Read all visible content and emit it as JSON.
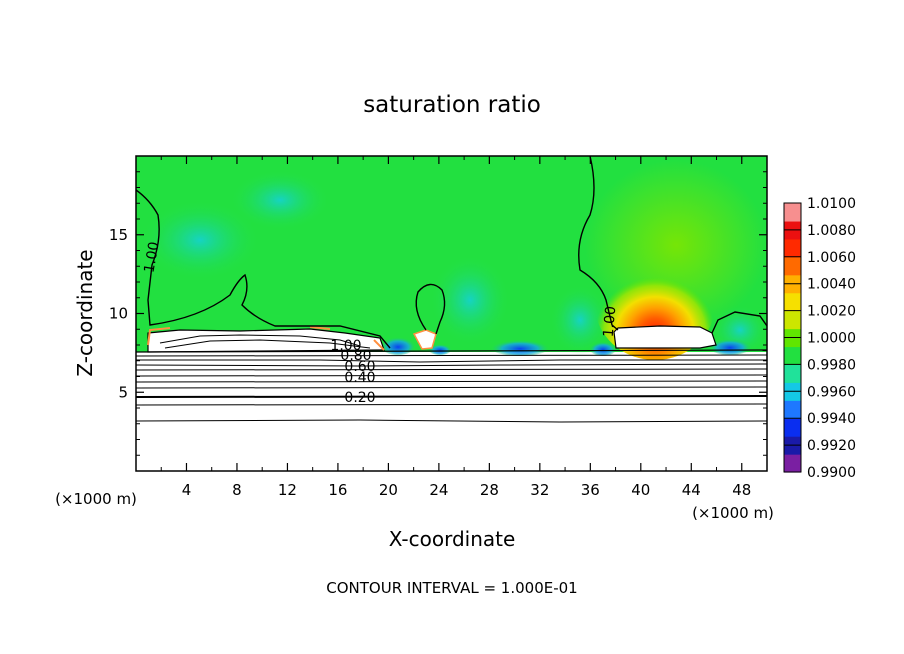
{
  "chart_data": {
    "type": "heatmap",
    "title": "saturation ratio",
    "xlabel": "X-coordinate",
    "ylabel": "Z-coordinate",
    "x_unit_label": "(×1000 m)",
    "y_unit_label": "(×1000 m)",
    "footer": "CONTOUR INTERVAL = 1.000E-01",
    "xlim": [
      0,
      50
    ],
    "ylim": [
      0,
      20
    ],
    "x_ticks": [
      "4",
      "8",
      "12",
      "16",
      "20",
      "24",
      "28",
      "32",
      "36",
      "40",
      "44",
      "48"
    ],
    "y_ticks": [
      "5",
      "10",
      "15"
    ],
    "contour_labels": [
      "1.00",
      "1.00",
      "0.20",
      "0.40",
      "0.60",
      "0.80",
      "1.00"
    ],
    "contour_interval": 0.1,
    "colorbar": {
      "min": 0.99,
      "max": 1.01,
      "labels": [
        "1.0100",
        "1.0080",
        "1.0060",
        "1.0040",
        "1.0020",
        "1.0000",
        "0.9980",
        "0.9960",
        "0.9940",
        "0.9920",
        "0.9900"
      ],
      "colors": [
        "#7a1fa2",
        "#1a1aa8",
        "#0a2ef0",
        "#1e78ff",
        "#14c8e6",
        "#20e29a",
        "#22e040",
        "#60e600",
        "#cce600",
        "#f6e000",
        "#ffb000",
        "#ff6a00",
        "#ff2a00",
        "#ec1010",
        "#f78f8f"
      ]
    }
  }
}
